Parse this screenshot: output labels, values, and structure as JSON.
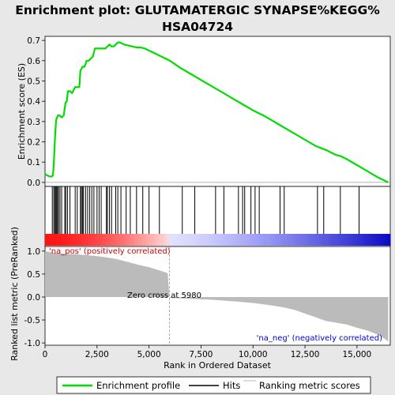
{
  "chart_data": {
    "type": "line",
    "title_line1": "Enrichment plot: GLUTAMATERGIC SYNAPSE%KEGG%",
    "title_line2": "HSA04724",
    "top_panel": {
      "ylabel": "Enrichment score (ES)",
      "ylim": [
        -0.02,
        0.72
      ],
      "yticks": [
        0.0,
        0.1,
        0.2,
        0.3,
        0.4,
        0.5,
        0.6,
        0.7
      ],
      "ytick_labels": [
        "0.0",
        "0.1",
        "0.2",
        "0.3",
        "0.4",
        "0.5",
        "0.6",
        "0.7"
      ],
      "series_name": "Enrichment profile",
      "series_color": "#00dd00",
      "x": [
        0,
        100,
        200,
        300,
        380,
        420,
        460,
        500,
        540,
        580,
        620,
        700,
        800,
        900,
        980,
        1050,
        1100,
        1200,
        1300,
        1450,
        1500,
        1650,
        1700,
        1750,
        1800,
        1900,
        2000,
        2100,
        2200,
        2300,
        2400,
        2500,
        2600,
        2700,
        2800,
        2900,
        3000,
        3100,
        3200,
        3300,
        3400,
        3500,
        3600,
        3700,
        3800,
        4000,
        4200,
        4400,
        4600,
        4800,
        5000,
        5200,
        5500,
        6000,
        6500,
        7000,
        7500,
        8000,
        8500,
        9000,
        9500,
        10000,
        10500,
        11000,
        11500,
        12000,
        12500,
        13000,
        13500,
        14000,
        14200,
        14500,
        15000,
        15500,
        16000,
        16500
      ],
      "y": [
        0.04,
        0.035,
        0.03,
        0.028,
        0.035,
        0.09,
        0.18,
        0.26,
        0.31,
        0.32,
        0.33,
        0.33,
        0.32,
        0.33,
        0.39,
        0.4,
        0.45,
        0.45,
        0.44,
        0.47,
        0.47,
        0.47,
        0.55,
        0.56,
        0.57,
        0.57,
        0.6,
        0.6,
        0.61,
        0.62,
        0.66,
        0.66,
        0.66,
        0.66,
        0.66,
        0.66,
        0.67,
        0.68,
        0.67,
        0.67,
        0.68,
        0.69,
        0.69,
        0.685,
        0.68,
        0.675,
        0.67,
        0.665,
        0.665,
        0.66,
        0.65,
        0.64,
        0.625,
        0.6,
        0.565,
        0.535,
        0.505,
        0.475,
        0.445,
        0.415,
        0.385,
        0.355,
        0.33,
        0.3,
        0.27,
        0.24,
        0.21,
        0.18,
        0.16,
        0.135,
        0.13,
        0.115,
        0.085,
        0.055,
        0.025,
        0.0
      ]
    },
    "hits_panel": {
      "legend_label": "Hits",
      "positions": [
        350,
        420,
        470,
        520,
        560,
        600,
        650,
        720,
        800,
        950,
        1000,
        1080,
        1200,
        1450,
        1550,
        1700,
        1750,
        1800,
        1850,
        1950,
        2050,
        2150,
        2250,
        2350,
        2500,
        2600,
        2700,
        2950,
        3000,
        3100,
        3200,
        3400,
        3500,
        3650,
        3900,
        4100,
        4400,
        4700,
        5000,
        5500,
        6600,
        7200,
        8200,
        8600,
        9300,
        9500,
        9600,
        9900,
        10100,
        10300,
        11300,
        11500,
        13100,
        13400,
        14200,
        15100
      ]
    },
    "bottom_panel": {
      "ylabel": "Ranked list metric (PreRanked)",
      "ylim": [
        -1.05,
        1.1
      ],
      "yticks": [
        1.0,
        0.5,
        0.0,
        -0.5,
        -1.0
      ],
      "ytick_labels": [
        "1.0",
        "0.5",
        "0.0",
        "-0.5",
        "-1.0"
      ],
      "series_name": "Ranking metric scores",
      "series_color": "#bbbbbb",
      "x": [
        0,
        200,
        500,
        1000,
        1500,
        2000,
        2500,
        3000,
        3500,
        4000,
        4500,
        5000,
        5500,
        5900,
        5980,
        6000,
        7000,
        8000,
        9000,
        10000,
        11000,
        11500,
        12000,
        12500,
        13000,
        13500,
        14000,
        14500,
        15000,
        15500,
        16000,
        16300,
        16500
      ],
      "y": [
        1.0,
        0.98,
        0.96,
        0.94,
        0.93,
        0.91,
        0.89,
        0.86,
        0.82,
        0.76,
        0.7,
        0.65,
        0.58,
        0.52,
        0.0,
        -0.02,
        -0.04,
        -0.06,
        -0.09,
        -0.13,
        -0.19,
        -0.23,
        -0.28,
        -0.36,
        -0.44,
        -0.52,
        -0.56,
        -0.6,
        -0.67,
        -0.73,
        -0.82,
        -0.9,
        -0.97
      ],
      "pos_label": "'na_pos' (positively correlated)",
      "neg_label": "'na_neg' (negatively correlated)",
      "zero_cross_label": "Zero cross at 5980",
      "zero_cross": 5980
    },
    "xlabel": "Rank in Ordered Dataset",
    "xlim": [
      0,
      16600
    ],
    "xticks": [
      0,
      2500,
      5000,
      7500,
      10000,
      12500,
      15000
    ],
    "xtick_labels": [
      "0",
      "2,500",
      "5,000",
      "7,500",
      "10,000",
      "12,500",
      "15,000"
    ],
    "legend": [
      "Enrichment profile",
      "Hits",
      "Ranking metric scores"
    ]
  }
}
